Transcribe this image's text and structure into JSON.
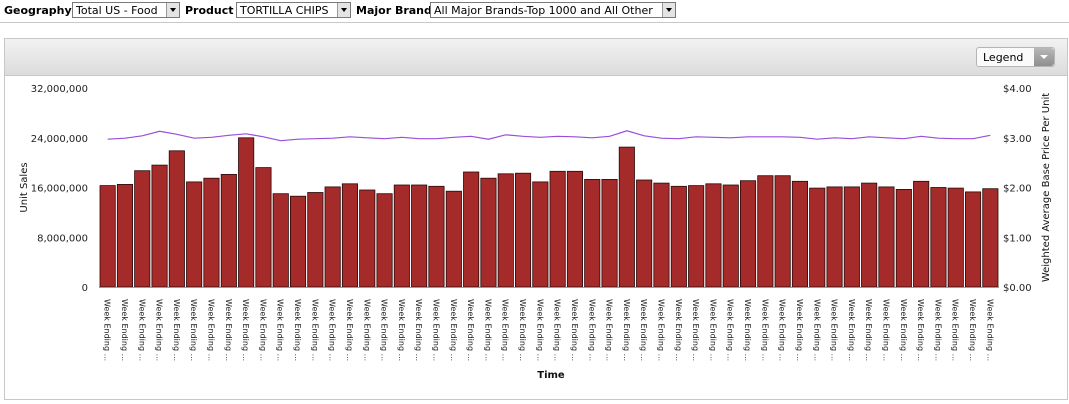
{
  "filters": {
    "geography": {
      "label": "Geography",
      "value": "Total US - Food"
    },
    "product": {
      "label": "Product",
      "value": "TORTILLA CHIPS"
    },
    "brand": {
      "label": "Major Brand",
      "value": "All Major Brands-Top 1000 and All Other"
    }
  },
  "legend_button": {
    "label": "Legend"
  },
  "chart_data": {
    "type": "bar",
    "xlabel": "Time",
    "ylabel": "Unit Sales",
    "y2label": "Weighted Average Base Price Per Unit",
    "ylim": [
      0,
      32000000
    ],
    "y2lim": [
      0,
      4
    ],
    "yticks": [
      "0",
      "8,000,000",
      "16,000,000",
      "24,000,000",
      "32,000,000"
    ],
    "y2ticks": [
      "$0.00",
      "$1.00",
      "$2.00",
      "$3.00",
      "$4.00"
    ],
    "category_label": "Week Ending ...",
    "colors": {
      "bar": "#a52a2a",
      "bar_border": "#2a0a0a",
      "line": "#9a4ddb"
    },
    "series": [
      {
        "name": "Unit Sales",
        "type": "bar",
        "values": [
          16300000,
          16500000,
          18700000,
          19600000,
          21900000,
          16900000,
          17500000,
          18100000,
          24000000,
          19200000,
          15000000,
          14600000,
          15200000,
          16100000,
          16600000,
          15600000,
          15000000,
          16400000,
          16400000,
          16200000,
          15400000,
          18500000,
          17500000,
          18200000,
          18300000,
          16900000,
          18600000,
          18600000,
          17300000,
          17300000,
          22500000,
          17200000,
          16700000,
          16200000,
          16300000,
          16600000,
          16400000,
          17100000,
          17900000,
          17900000,
          17000000,
          15900000,
          16100000,
          16100000,
          16700000,
          16100000,
          15700000,
          17000000,
          16000000,
          15900000,
          15300000,
          15800000
        ]
      },
      {
        "name": "Weighted Average Base Price Per Unit",
        "type": "line",
        "axis": "right",
        "values": [
          2.97,
          2.99,
          3.04,
          3.13,
          3.07,
          2.99,
          3.01,
          3.05,
          3.08,
          3.02,
          2.94,
          2.97,
          2.98,
          2.99,
          3.02,
          3.0,
          2.98,
          3.01,
          2.98,
          2.98,
          3.01,
          3.03,
          2.97,
          3.06,
          3.03,
          3.01,
          3.03,
          3.02,
          3.0,
          3.03,
          3.14,
          3.04,
          2.99,
          2.98,
          3.02,
          3.01,
          3.0,
          3.02,
          3.02,
          3.02,
          3.01,
          2.97,
          3.0,
          2.98,
          3.02,
          3.0,
          2.98,
          3.03,
          2.99,
          2.98,
          2.98,
          3.05
        ]
      }
    ]
  }
}
